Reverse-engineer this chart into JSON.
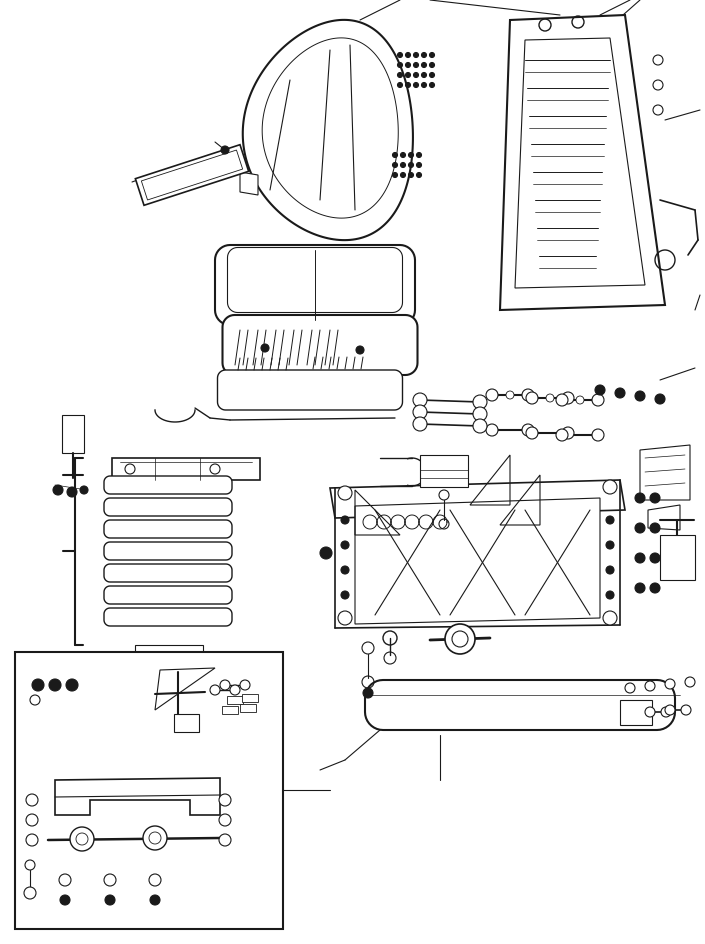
{
  "bg_color": "#ffffff",
  "line_color": "#1a1a1a",
  "fig_width": 7.05,
  "fig_height": 9.44,
  "dpi": 100
}
